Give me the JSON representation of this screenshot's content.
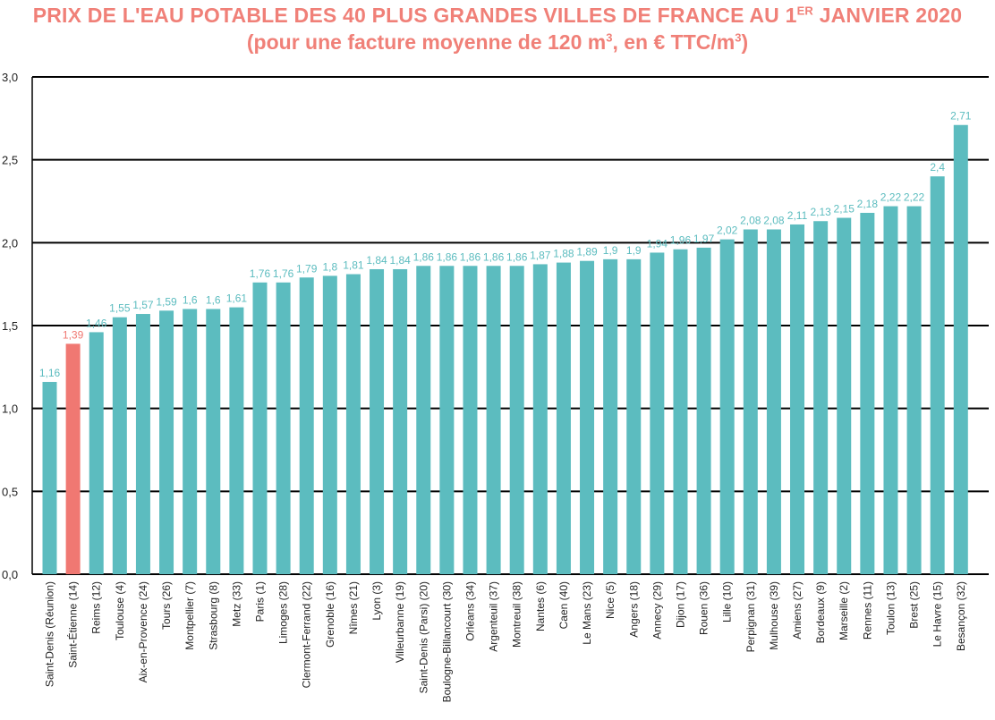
{
  "title": {
    "line1_main": "PRIX DE L'EAU POTABLE DES 40 PLUS GRANDES VILLES DE FRANCE AU 1",
    "line1_sup": "ER",
    "line1_end": " JANVIER 2020",
    "line2_a": "(pour une facture moyenne de 120 m",
    "line2_sup1": "3",
    "line2_b": ", en € TTC/m",
    "line2_sup2": "3",
    "line2_c": ")"
  },
  "chart_data": {
    "type": "bar",
    "title": "PRIX DE L'EAU POTABLE DES 40 PLUS GRANDES VILLES DE FRANCE AU 1ER JANVIER 2020",
    "subtitle": "(pour une facture moyenne de 120 m3, en € TTC/m3)",
    "xlabel": "",
    "ylabel": "",
    "ylim": [
      0,
      3
    ],
    "yticks": [
      0,
      0.5,
      1,
      1.5,
      2,
      2.5,
      3
    ],
    "ytick_labels": [
      "0,0",
      "0,5",
      "1,0",
      "1,5",
      "2,0",
      "2,5",
      "3,0"
    ],
    "grid": "horizontal",
    "legend": "none",
    "categories": [
      "Saint-Denis (Réunion)",
      "Saint-Étienne (14)",
      "Reims (12)",
      "Toulouse (4)",
      "Aix-en-Provence (24)",
      "Tours (26)",
      "Montpellier (7)",
      "Strasbourg (8)",
      "Metz (33)",
      "Paris (1)",
      "Limoges (28)",
      "Clermont-Ferrand (22)",
      "Grenoble (16)",
      "Nîmes (21)",
      "Lyon (3)",
      "Villeurbanne (19)",
      "Saint-Denis (Parsi) (20)",
      "Boulogne-Billancourt (30)",
      "Orléans (34)",
      "Argenteuil (37)",
      "Montreuil (38)",
      "Nantes (6)",
      "Caen (40)",
      "Le Mans (23)",
      "Nice (5)",
      "Angers (18)",
      "Annecy (29)",
      "Dijon (17)",
      "Rouen (36)",
      "Lille (10)",
      "Perpignan (31)",
      "Mulhouse (39)",
      "Amiens (27)",
      "Bordeaux (9)",
      "Marseille (2)",
      "Rennes (11)",
      "Toulon (13)",
      "Brest (25)",
      "Le Havre (15)",
      "Besançon (32)"
    ],
    "values": [
      1.16,
      1.39,
      1.46,
      1.55,
      1.57,
      1.59,
      1.6,
      1.6,
      1.61,
      1.76,
      1.76,
      1.79,
      1.8,
      1.81,
      1.84,
      1.84,
      1.86,
      1.86,
      1.86,
      1.86,
      1.86,
      1.87,
      1.88,
      1.89,
      1.9,
      1.9,
      1.94,
      1.96,
      1.97,
      2.02,
      2.08,
      2.08,
      2.11,
      2.13,
      2.15,
      2.18,
      2.22,
      2.22,
      2.4,
      2.71
    ],
    "value_labels": [
      "1,16",
      "1,39",
      "1,46",
      "1,55",
      "1,57",
      "1,59",
      "1,6",
      "1,6",
      "1,61",
      "1,76",
      "1,76",
      "1,79",
      "1,8",
      "1,81",
      "1,84",
      "1,84",
      "1,86",
      "1,86",
      "1,86",
      "1,86",
      "1,86",
      "1,87",
      "1,88",
      "1,89",
      "1,9",
      "1,9",
      "1,94",
      "1,96",
      "1,97",
      "2,02",
      "2,08",
      "2,08",
      "2,11",
      "2,13",
      "2,15",
      "2,18",
      "2,22",
      "2,22",
      "2,4",
      "2,71"
    ],
    "highlight_index": 1,
    "colors": {
      "bar": "#5cbcbf",
      "highlight": "#f07872",
      "label": "#5cbcbf",
      "highlight_label": "#f07872",
      "title": "#f08078"
    }
  }
}
